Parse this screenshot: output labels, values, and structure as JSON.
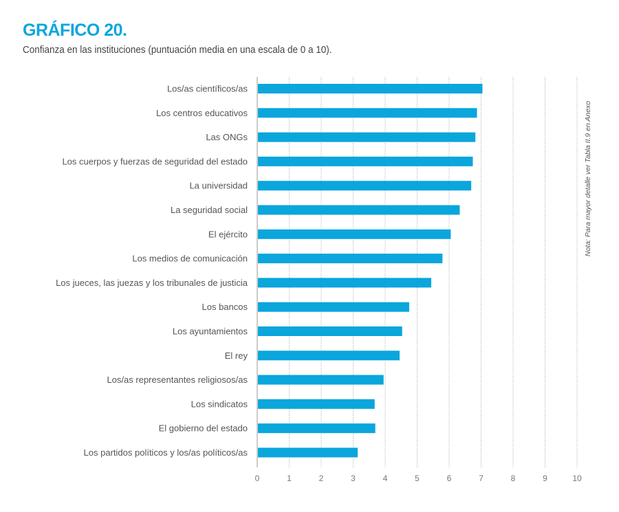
{
  "chart_data": {
    "type": "bar",
    "orientation": "horizontal",
    "title": "GRÁFICO 20.",
    "subtitle": "Confianza en las instituciones (puntuación media en una escala de 0 a 10).",
    "note": "Nota: Para mayor detalle ver Tabla II.9 en Anexo",
    "categories": [
      "Los/as científicos/as",
      "Los centros educativos",
      "Las ONGs",
      "Los cuerpos y fuerzas de seguridad del estado",
      "La universidad",
      "La seguridad social",
      "El ejército",
      "Los medios de comunicación",
      "Los jueces, las juezas y los tribunales de justicia",
      "Los bancos",
      "Los ayuntamientos",
      "El rey",
      "Los/as representantes religiosos/as",
      "Los sindicatos",
      "El gobierno del estado",
      "Los partidos políticos y los/as políticos/as"
    ],
    "values": [
      7.02,
      6.85,
      6.8,
      6.72,
      6.67,
      6.31,
      6.03,
      5.77,
      5.42,
      4.73,
      4.51,
      4.43,
      3.93,
      3.65,
      3.67,
      3.12
    ],
    "xlim": [
      0,
      10
    ],
    "xticks": [
      "0",
      "1",
      "2",
      "3",
      "4",
      "5",
      "6",
      "7",
      "8",
      "9",
      "10"
    ],
    "grid": "vertical dotted",
    "bar_color": "#0aa6dc"
  }
}
